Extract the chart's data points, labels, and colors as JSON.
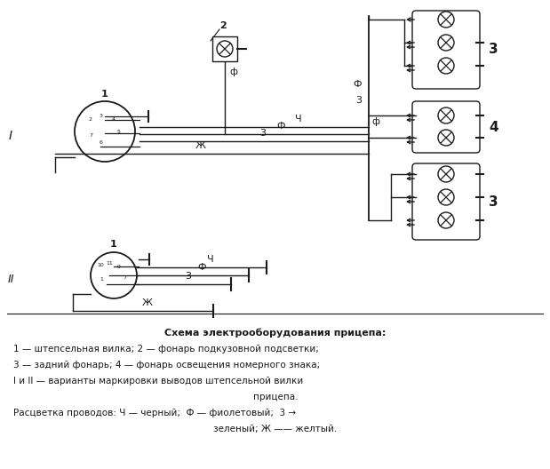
{
  "bg_color": "#ffffff",
  "line_color": "#1a1a1a",
  "title": "Схема электрооборудования прицепа:",
  "legend_line1": "1 — штепсельная вилка; 2 — фонарь подкузовной подсветки;",
  "legend_line2": "3 — задний фонарь; 4 — фонарь освещения номерного знака;",
  "legend_line3": "I и II — варианты маркировки выводов штепсельной вилки",
  "legend_line4": "прицепа.",
  "legend_line5": "Расцветка проводов: Ч — черный;  Ф — фиолетовый;  3 →",
  "legend_line6": "зеленый; Ж —— желтый."
}
